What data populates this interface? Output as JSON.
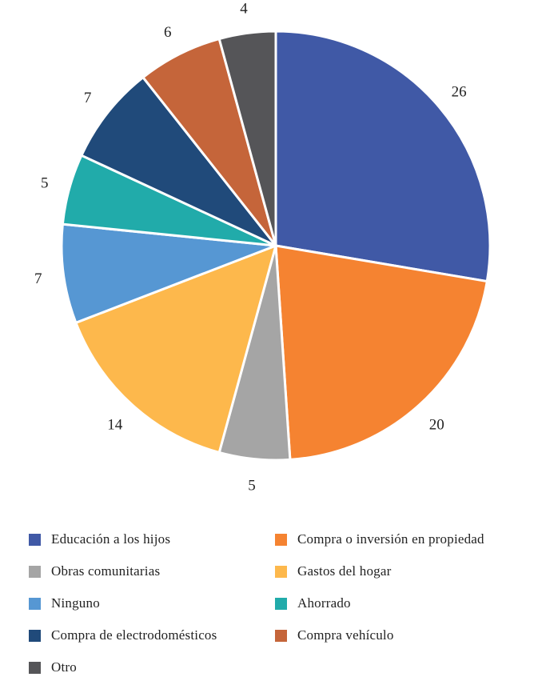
{
  "chart_data": {
    "type": "pie",
    "title": "",
    "categories": [
      "Educación a los hijos",
      "Compra o inversión en propiedad",
      "Obras comunitarias",
      "Gastos del hogar",
      "Ninguno",
      "Ahorrado",
      "Compra de electrodomésticos",
      "Compra vehículo",
      "Otro"
    ],
    "values": [
      26,
      20,
      5,
      14,
      7,
      5,
      7,
      6,
      4
    ],
    "colors": [
      "#4059A6",
      "#F58331",
      "#A5A5A5",
      "#FDB84C",
      "#5697D3",
      "#21ABAA",
      "#204A7A",
      "#C5653A",
      "#555558"
    ],
    "legend_placement": "bottom",
    "slice_border_color": "#ffffff"
  }
}
